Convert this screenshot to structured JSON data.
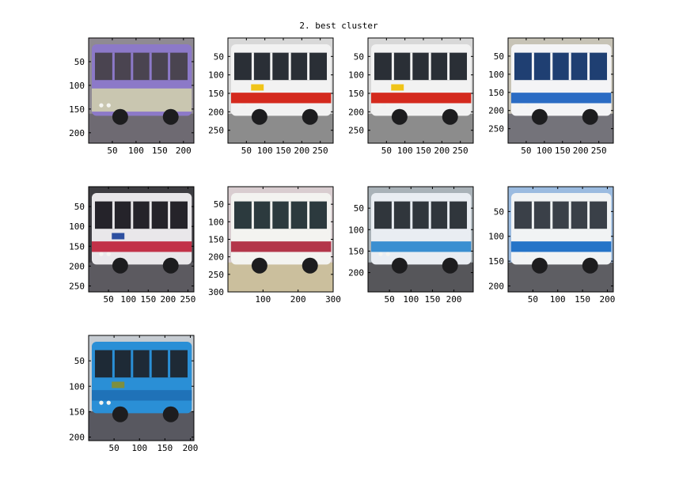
{
  "chart_data": {
    "type": "image-grid",
    "title": "2. best cluster",
    "grid": {
      "rows": 3,
      "cols": 4
    },
    "panels": [
      {
        "name": "purple-bus",
        "xlim": [
          0,
          222
        ],
        "ylim": [
          0,
          222
        ],
        "xticks": [
          50,
          100,
          150,
          200
        ],
        "yticks": [
          50,
          100,
          150,
          200
        ],
        "colors": {
          "sky": "#8f8a92",
          "body": "#8c79c8",
          "lower": "#c9c6b0",
          "window": "#4a4450",
          "road": "#6e6a72"
        }
      },
      {
        "name": "red-white-bus-1",
        "xlim": [
          0,
          285
        ],
        "ylim": [
          0,
          285
        ],
        "xticks": [
          50,
          100,
          150,
          200,
          250
        ],
        "yticks": [
          50,
          100,
          150,
          200,
          250
        ],
        "colors": {
          "sky": "#d8d8d8",
          "body": "#f2f2f2",
          "stripe": "#d42a1e",
          "window": "#2a2f36",
          "road": "#8c8c8c",
          "accent": "#f0c419"
        }
      },
      {
        "name": "red-white-bus-2",
        "xlim": [
          0,
          285
        ],
        "ylim": [
          0,
          285
        ],
        "xticks": [
          50,
          100,
          150,
          200,
          250
        ],
        "yticks": [
          50,
          100,
          150,
          200,
          250
        ],
        "colors": {
          "sky": "#d8d8d8",
          "body": "#f2f2f2",
          "stripe": "#d42a1e",
          "window": "#2a2f36",
          "road": "#8c8c8c",
          "accent": "#f0c419"
        }
      },
      {
        "name": "blue-white-coach",
        "xlim": [
          0,
          290
        ],
        "ylim": [
          0,
          290
        ],
        "xticks": [
          50,
          100,
          150,
          200,
          250
        ],
        "yticks": [
          50,
          100,
          150,
          200,
          250
        ],
        "colors": {
          "sky": "#c7c3b6",
          "body": "#f4f4f6",
          "stripe": "#2b6cc4",
          "window": "#1f3f72",
          "road": "#74737a"
        }
      },
      {
        "name": "bus-rear",
        "xlim": [
          0,
          265
        ],
        "ylim": [
          0,
          265
        ],
        "xticks": [
          50,
          100,
          150,
          200,
          250
        ],
        "yticks": [
          50,
          100,
          150,
          200,
          250
        ],
        "colors": {
          "sky": "#3e3d42",
          "body": "#e9e7ea",
          "stripe": "#c23148",
          "window": "#25232a",
          "road": "#5c5a60",
          "accent": "#2d4fa0"
        }
      },
      {
        "name": "white-coach",
        "xlim": [
          0,
          300
        ],
        "ylim": [
          0,
          300
        ],
        "xticks": [
          100,
          200,
          300
        ],
        "yticks": [
          50,
          100,
          150,
          200,
          250,
          300
        ],
        "colors": {
          "sky": "#d9cdd0",
          "body": "#f3f3f0",
          "stripe": "#b3364a",
          "window": "#2c3a3e",
          "road": "#cbbf9d"
        }
      },
      {
        "name": "blue-white-bus-front",
        "xlim": [
          0,
          245
        ],
        "ylim": [
          0,
          245
        ],
        "xticks": [
          50,
          100,
          150,
          200
        ],
        "yticks": [
          50,
          100,
          150,
          200
        ],
        "colors": {
          "sky": "#a9b2b8",
          "body": "#e9edf2",
          "stripe": "#3a8fd1",
          "window": "#30363c",
          "road": "#56565a"
        }
      },
      {
        "name": "white-blue-bus",
        "xlim": [
          0,
          212
        ],
        "ylim": [
          0,
          212
        ],
        "xticks": [
          50,
          100,
          150,
          200
        ],
        "yticks": [
          50,
          100,
          150,
          200
        ],
        "colors": {
          "sky": "#9bbbe0",
          "body": "#f1f3f4",
          "stripe": "#2574c8",
          "window": "#3a4048",
          "road": "#5e5e63"
        }
      },
      {
        "name": "blue-bus",
        "xlim": [
          0,
          207
        ],
        "ylim": [
          0,
          207
        ],
        "xticks": [
          50,
          100,
          150,
          200
        ],
        "yticks": [
          50,
          100,
          150,
          200
        ],
        "colors": {
          "sky": "#c6ccd2",
          "body": "#2a8fd6",
          "stripe": "#1f72b8",
          "window": "#1e2a36",
          "road": "#585860",
          "accent": "#7d8f3e"
        }
      }
    ]
  }
}
